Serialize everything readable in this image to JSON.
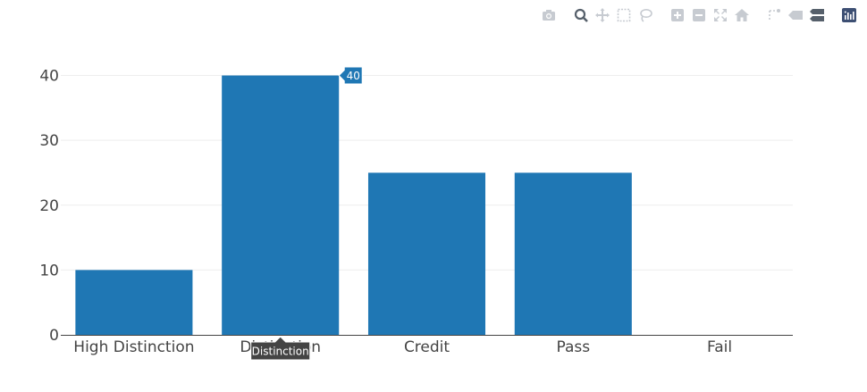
{
  "modebar": {
    "buttons": [
      {
        "name": "camera-icon",
        "group": 1
      },
      {
        "name": "zoom-icon",
        "group": 2
      },
      {
        "name": "pan-icon",
        "group": 2
      },
      {
        "name": "box-select-icon",
        "group": 2
      },
      {
        "name": "lasso-select-icon",
        "group": 2
      },
      {
        "name": "zoom-in-icon",
        "group": 3
      },
      {
        "name": "zoom-out-icon",
        "group": 3
      },
      {
        "name": "autoscale-icon",
        "group": 3
      },
      {
        "name": "reset-axes-icon",
        "group": 3
      },
      {
        "name": "spike-lines-icon",
        "group": 4
      },
      {
        "name": "hover-closest-icon",
        "group": 4
      },
      {
        "name": "hover-compare-icon",
        "group": 4
      },
      {
        "name": "plotly-logo-icon",
        "group": 5
      }
    ],
    "colors": {
      "icon": "#c7cbd1",
      "logo": "#3d4f73"
    }
  },
  "chart_data": {
    "type": "bar",
    "categories": [
      "High Distinction",
      "Distinction",
      "Credit",
      "Pass",
      "Fail"
    ],
    "values": [
      10,
      40,
      25,
      25,
      0
    ],
    "ylim": [
      0,
      42
    ],
    "yticks": [
      0,
      10,
      20,
      30,
      40
    ],
    "grid": true,
    "bar_color": "#1f77b4",
    "hover": {
      "category_index": 1,
      "value_label": "40",
      "category_label": "Distinction",
      "value_label_color": "#1f77b4",
      "category_label_color": "#444444"
    }
  }
}
